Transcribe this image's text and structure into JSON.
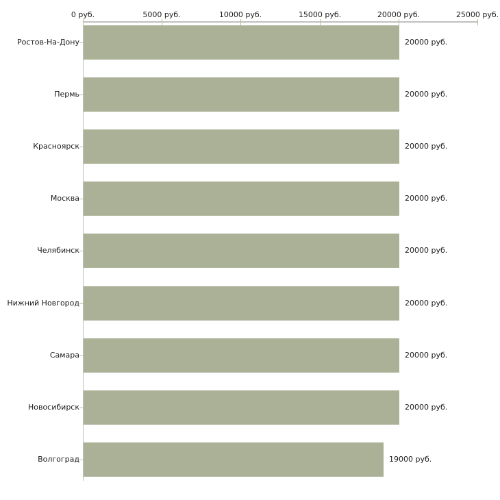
{
  "chart_data": {
    "type": "bar",
    "orientation": "horizontal",
    "title": "",
    "xlabel": "",
    "ylabel": "",
    "grid": false,
    "legend": null,
    "categories": [
      "Ростов-На-Дону",
      "Пермь",
      "Красноярск",
      "Москва",
      "Челябинск",
      "Нижний Новгород",
      "Самара",
      "Новосибирск",
      "Волгоград"
    ],
    "values": [
      20000,
      20000,
      20000,
      20000,
      20000,
      20000,
      20000,
      20000,
      19000
    ],
    "value_labels": [
      "20000 руб.",
      "20000 руб.",
      "20000 руб.",
      "20000 руб.",
      "20000 руб.",
      "20000 руб.",
      "20000 руб.",
      "20000 руб.",
      "19000 руб."
    ],
    "x_axis": {
      "position": "top",
      "min": 0,
      "max": 25000,
      "ticks": [
        0,
        5000,
        10000,
        15000,
        20000,
        25000
      ],
      "tick_labels": [
        "0 руб.",
        "5000 руб.",
        "10000 руб.",
        "15000 руб.",
        "20000 руб.",
        "25000 руб."
      ]
    },
    "colors": {
      "bar": "#abb196",
      "axis_line": "#c0c0c0",
      "x_tick": "#bcbc94",
      "cat_tick": "#bcbc94",
      "text": "#1a1a1a",
      "background": "#ffffff"
    }
  }
}
